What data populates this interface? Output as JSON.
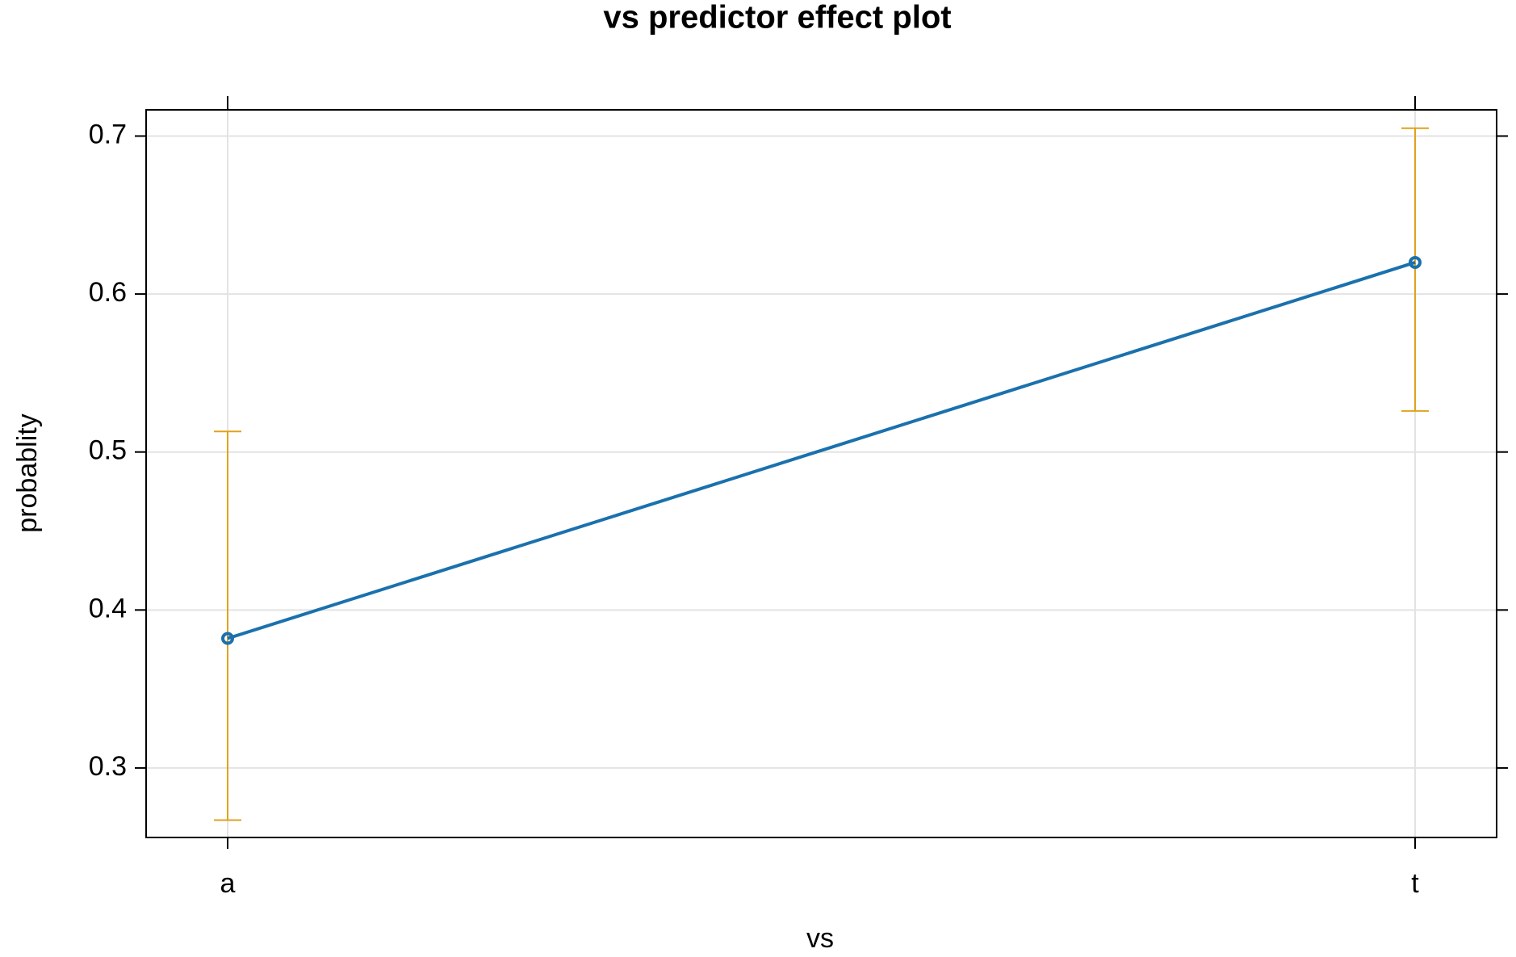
{
  "chart_data": {
    "type": "line",
    "title": "vs predictor effect plot",
    "x_label": "vs",
    "y_label": "probablity",
    "categories": [
      "a",
      "t"
    ],
    "series": [
      {
        "color": "#1a71ad",
        "values": [
          0.382,
          0.62
        ],
        "lower": [
          0.267,
          0.526
        ],
        "upper": [
          0.513,
          0.705
        ],
        "error_color": "#e0a21b"
      }
    ],
    "ylim": [
      0.256,
      0.7166
    ],
    "yticks": [
      0.3,
      0.4,
      0.5,
      0.6,
      0.7
    ],
    "grid": true
  }
}
